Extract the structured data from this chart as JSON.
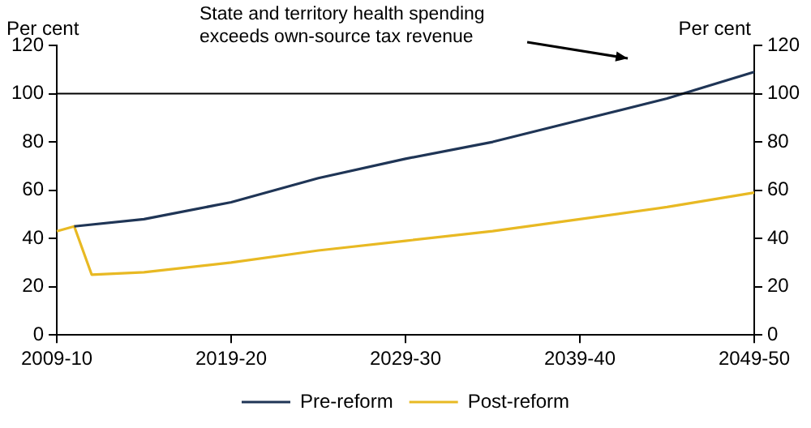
{
  "chart_data": {
    "type": "line",
    "ylabel": "Per cent",
    "y2label": "Per cent",
    "categories": [
      "2009-10",
      null,
      null,
      null,
      null,
      null,
      null,
      null,
      null,
      null,
      "2019-20",
      null,
      null,
      null,
      null,
      null,
      null,
      null,
      null,
      null,
      "2029-30",
      null,
      null,
      null,
      null,
      null,
      null,
      null,
      null,
      null,
      "2039-40",
      null,
      null,
      null,
      null,
      null,
      null,
      null,
      null,
      null,
      "2049-50"
    ],
    "ylim": [
      0,
      120
    ],
    "yticks": [
      0,
      20,
      40,
      60,
      80,
      100,
      120
    ],
    "y2lim": [
      0,
      120
    ],
    "y2ticks": [
      0,
      20,
      40,
      60,
      80,
      100,
      120
    ],
    "series": [
      {
        "name": "Pre-reform",
        "color": "#1f3556",
        "values": [
          null,
          45,
          null,
          null,
          null,
          48,
          null,
          null,
          null,
          null,
          55,
          null,
          null,
          null,
          null,
          65,
          null,
          null,
          null,
          null,
          73,
          null,
          null,
          null,
          null,
          80,
          null,
          null,
          null,
          null,
          89,
          null,
          null,
          null,
          null,
          98,
          null,
          null,
          null,
          null,
          109
        ]
      },
      {
        "name": "Post-reform",
        "color": "#e8b923",
        "values": [
          43,
          45,
          25,
          null,
          null,
          26,
          null,
          null,
          null,
          null,
          30,
          null,
          null,
          null,
          null,
          35,
          null,
          null,
          null,
          null,
          39,
          null,
          null,
          null,
          null,
          43,
          null,
          null,
          null,
          null,
          48,
          null,
          null,
          null,
          null,
          53,
          null,
          null,
          null,
          null,
          59
        ]
      }
    ],
    "ref_lines": [
      {
        "axis": "y",
        "value": 100,
        "color": "#000000"
      }
    ],
    "annotations": [
      "State and territory health spending exceeds own-source tax revenue"
    ],
    "legend": "bottom",
    "grid": false,
    "marker": "none",
    "line_style": "solid"
  }
}
